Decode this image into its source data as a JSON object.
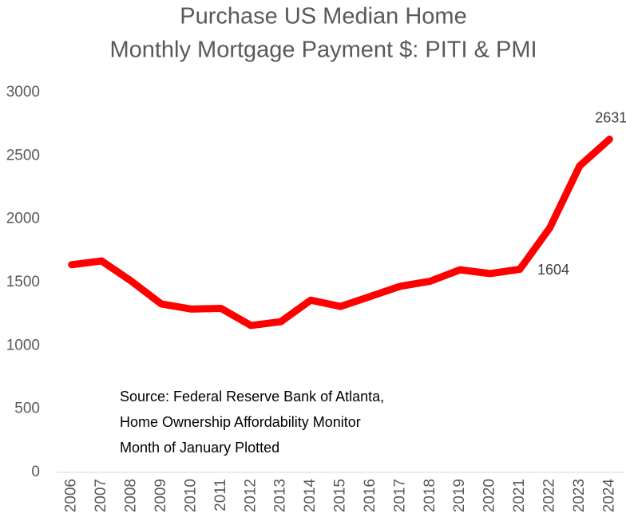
{
  "chart_data": {
    "type": "line",
    "title": [
      "Purchase US Median Home",
      "Monthly Mortgage Payment $:  PITI & PMI"
    ],
    "annotation": [
      "Source:  Federal Reserve Bank of Atlanta,",
      "Home Ownership Affordability Monitor",
      "Month of January Plotted"
    ],
    "categories": [
      "2006",
      "2007",
      "2008",
      "2009",
      "2010",
      "2011",
      "2012",
      "2013",
      "2014",
      "2015",
      "2016",
      "2017",
      "2018",
      "2019",
      "2020",
      "2021",
      "2022",
      "2023",
      "2024"
    ],
    "series": [
      {
        "name": "Monthly Mortgage Payment",
        "color": "#ff0000",
        "values": [
          1640,
          1670,
          1510,
          1330,
          1290,
          1295,
          1160,
          1190,
          1360,
          1310,
          1390,
          1470,
          1510,
          1600,
          1570,
          1604,
          1930,
          2420,
          2631
        ],
        "value_labels": [
          null,
          null,
          null,
          null,
          null,
          null,
          null,
          null,
          null,
          null,
          null,
          null,
          null,
          null,
          null,
          "1604",
          null,
          null,
          "2631"
        ]
      }
    ],
    "ylim": [
      0,
      3000
    ],
    "yticks": [
      0,
      500,
      1000,
      1500,
      2000,
      2500,
      3000
    ],
    "grid": false
  }
}
